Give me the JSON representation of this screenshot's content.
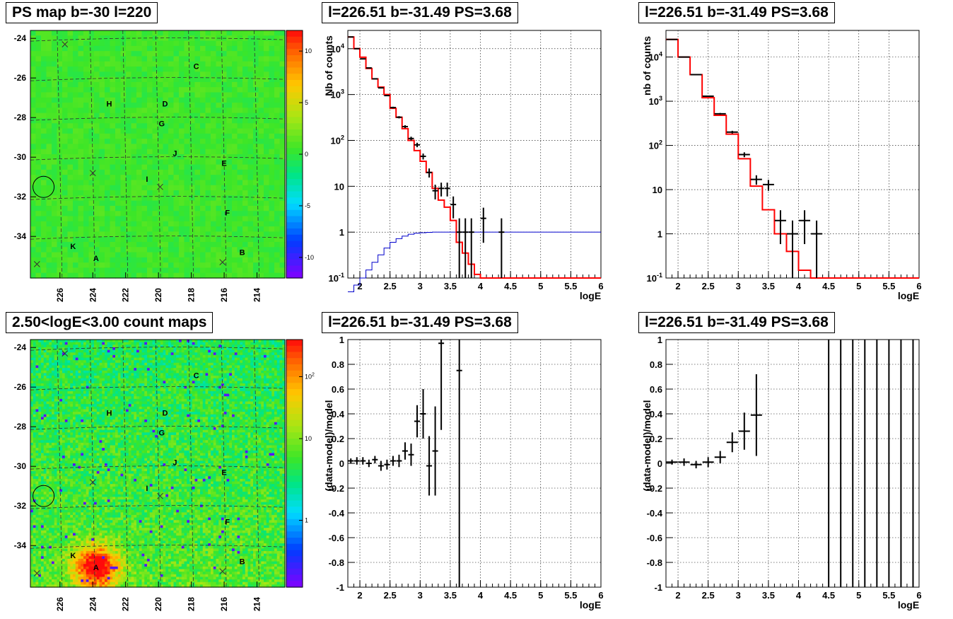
{
  "titles": {
    "map_top": "PS map b=-30 l=220",
    "spec_full": "l=226.51 b=-31.49 PS=3.68",
    "spec_reb": "l=226.51 b=-31.49 PS=3.68",
    "map_bottom": "2.50<logE<3.00 count maps",
    "res_full": "l=226.51 b=-31.49 PS=3.68",
    "res_reb": "l=226.51 b=-31.49 PS=3.68"
  },
  "chart_data": [
    {
      "id": "ps_map",
      "type": "heatmap",
      "title": "PS map b=-30 l=220",
      "x_ticks": [
        "226",
        "224",
        "222",
        "220",
        "218",
        "216",
        "214"
      ],
      "y_ticks": [
        "-24",
        "-26",
        "-28",
        "-30",
        "-32",
        "-34"
      ],
      "colorbar_ticks": [
        "10",
        "5",
        "0",
        "-5",
        "-10"
      ],
      "colorbar_range": [
        -12,
        12
      ],
      "sources": [
        {
          "label": "C",
          "l": 217.7,
          "b": -25.4
        },
        {
          "label": "H",
          "l": 223.0,
          "b": -27.3
        },
        {
          "label": "D",
          "l": 219.6,
          "b": -27.3
        },
        {
          "label": "G",
          "l": 219.8,
          "b": -28.3
        },
        {
          "label": "J",
          "l": 219.0,
          "b": -29.8
        },
        {
          "label": "E",
          "l": 216.0,
          "b": -30.3
        },
        {
          "label": "I",
          "l": 220.7,
          "b": -31.1
        },
        {
          "label": "F",
          "l": 215.8,
          "b": -32.8
        },
        {
          "label": "K",
          "l": 225.2,
          "b": -34.5
        },
        {
          "label": "A",
          "l": 223.8,
          "b": -35.1
        },
        {
          "label": "B",
          "l": 214.9,
          "b": -34.8
        }
      ],
      "crosses": [
        {
          "l": 225.7,
          "b": -24.3
        },
        {
          "l": 224.0,
          "b": -30.8
        },
        {
          "l": 219.9,
          "b": -31.5
        },
        {
          "l": 216.1,
          "b": -35.3
        },
        {
          "l": 227.4,
          "b": -35.4
        }
      ],
      "circle": {
        "l": 227.0,
        "b": -31.5
      }
    },
    {
      "id": "spectrum_full",
      "type": "line",
      "title": "l=226.51 b=-31.49 PS=3.68",
      "xlabel": "logE",
      "ylabel": "Nb of counts",
      "xlim": [
        1.8,
        6.0
      ],
      "ylim": [
        0.1,
        25000
      ],
      "yscale": "log",
      "grid": true,
      "x_ticks": [
        "2",
        "2.5",
        "3",
        "3.5",
        "4",
        "4.5",
        "5",
        "5.5",
        "6"
      ],
      "y_ticks": [
        "10^-1",
        "1",
        "10",
        "10^2",
        "10^3",
        "10^4"
      ],
      "model_edges": [
        1.8,
        1.9,
        2.0,
        2.1,
        2.2,
        2.3,
        2.4,
        2.5,
        2.6,
        2.7,
        2.8,
        2.9,
        3.0,
        3.1,
        3.2,
        3.3,
        3.4,
        3.5,
        3.6,
        3.7,
        3.8,
        3.9,
        4.0,
        6.0
      ],
      "model_values": [
        18000,
        10000,
        6500,
        3700,
        2200,
        1450,
        1000,
        500,
        320,
        180,
        100,
        60,
        35,
        20,
        9,
        5,
        3.5,
        1.8,
        0.6,
        0.35,
        0.2,
        0.12,
        0.1
      ],
      "data_points": [
        {
          "x": 1.85,
          "y": 18000
        },
        {
          "x": 1.95,
          "y": 10000
        },
        {
          "x": 2.05,
          "y": 6000
        },
        {
          "x": 2.15,
          "y": 3800
        },
        {
          "x": 2.25,
          "y": 2200
        },
        {
          "x": 2.35,
          "y": 1400
        },
        {
          "x": 2.45,
          "y": 950
        },
        {
          "x": 2.55,
          "y": 520
        },
        {
          "x": 2.65,
          "y": 320
        },
        {
          "x": 2.75,
          "y": 200
        },
        {
          "x": 2.85,
          "y": 110
        },
        {
          "x": 2.95,
          "y": 80
        },
        {
          "x": 3.05,
          "y": 45
        },
        {
          "x": 3.15,
          "y": 20
        },
        {
          "x": 3.25,
          "y": 8
        },
        {
          "x": 3.35,
          "y": 9
        },
        {
          "x": 3.45,
          "y": 9
        },
        {
          "x": 3.55,
          "y": 4
        },
        {
          "x": 3.65,
          "y": 1
        },
        {
          "x": 3.75,
          "y": 1
        },
        {
          "x": 3.85,
          "y": 1
        },
        {
          "x": 4.05,
          "y": 2
        },
        {
          "x": 4.35,
          "y": 1
        }
      ],
      "efficiency_curve": {
        "color": "#0000cc",
        "edges": [
          1.8,
          1.9,
          2.0,
          2.1,
          2.2,
          2.3,
          2.4,
          2.5,
          2.6,
          2.7,
          2.8,
          2.9,
          3.0,
          3.1,
          3.2,
          6.0
        ],
        "values": [
          0.05,
          0.07,
          0.1,
          0.15,
          0.22,
          0.32,
          0.45,
          0.6,
          0.72,
          0.82,
          0.9,
          0.95,
          0.97,
          0.99,
          1.0
        ]
      }
    },
    {
      "id": "spectrum_rebinned",
      "type": "line",
      "title": "l=226.51 b=-31.49 PS=3.68",
      "xlabel": "logE",
      "ylabel": "nb of counts",
      "xlim": [
        1.8,
        6.0
      ],
      "ylim": [
        0.1,
        40000
      ],
      "yscale": "log",
      "grid": true,
      "x_ticks": [
        "2",
        "2.5",
        "3",
        "3.5",
        "4",
        "4.5",
        "5",
        "5.5",
        "6"
      ],
      "y_ticks": [
        "10^-1",
        "1",
        "10",
        "10^2",
        "10^3",
        "10^4"
      ],
      "model_edges": [
        1.8,
        2.0,
        2.2,
        2.4,
        2.6,
        2.8,
        3.0,
        3.2,
        3.4,
        3.6,
        3.8,
        4.0,
        4.2,
        6.0
      ],
      "model_values": [
        25000,
        10000,
        4000,
        1200,
        480,
        180,
        50,
        12,
        3.5,
        1.0,
        0.4,
        0.15,
        0.1
      ],
      "data_points": [
        {
          "x": 1.9,
          "y": 25000
        },
        {
          "x": 2.1,
          "y": 10000
        },
        {
          "x": 2.3,
          "y": 4000
        },
        {
          "x": 2.5,
          "y": 1300
        },
        {
          "x": 2.7,
          "y": 520
        },
        {
          "x": 2.9,
          "y": 200
        },
        {
          "x": 3.1,
          "y": 62
        },
        {
          "x": 3.3,
          "y": 17
        },
        {
          "x": 3.5,
          "y": 13
        },
        {
          "x": 3.7,
          "y": 2
        },
        {
          "x": 3.9,
          "y": 1
        },
        {
          "x": 4.1,
          "y": 2
        },
        {
          "x": 4.3,
          "y": 1
        }
      ]
    },
    {
      "id": "count_map",
      "type": "heatmap",
      "title": "2.50<logE<3.00 count maps",
      "x_ticks": [
        "226",
        "224",
        "222",
        "220",
        "218",
        "216",
        "214"
      ],
      "y_ticks": [
        "-24",
        "-26",
        "-28",
        "-30",
        "-32",
        "-34"
      ],
      "colorbar_ticks": [
        "10^2",
        "10",
        "1"
      ],
      "colorbar_scale": "log",
      "hotspot": {
        "l": 223.8,
        "b": -35.1
      }
    },
    {
      "id": "residual_full",
      "type": "scatter",
      "title": "l=226.51 b=-31.49 PS=3.68",
      "xlabel": "logE",
      "ylabel": "(data-model)/model",
      "xlim": [
        1.8,
        6.0
      ],
      "ylim": [
        -1,
        1
      ],
      "grid": true,
      "x_ticks": [
        "2",
        "2.5",
        "3",
        "3.5",
        "4",
        "4.5",
        "5",
        "5.5",
        "6"
      ],
      "y_ticks": [
        "-1",
        "-0.8",
        "-0.6",
        "-0.4",
        "-0.2",
        "0",
        "0.2",
        "0.4",
        "0.6",
        "0.8",
        "1"
      ],
      "points": [
        {
          "x": 1.85,
          "y": 0.02,
          "err": 0.02
        },
        {
          "x": 1.95,
          "y": 0.02,
          "err": 0.03
        },
        {
          "x": 2.05,
          "y": 0.02,
          "err": 0.03
        },
        {
          "x": 2.15,
          "y": 0.0,
          "err": 0.03
        },
        {
          "x": 2.25,
          "y": 0.03,
          "err": 0.03
        },
        {
          "x": 2.35,
          "y": -0.02,
          "err": 0.04
        },
        {
          "x": 2.45,
          "y": -0.01,
          "err": 0.04
        },
        {
          "x": 2.55,
          "y": 0.02,
          "err": 0.04
        },
        {
          "x": 2.65,
          "y": 0.02,
          "err": 0.05
        },
        {
          "x": 2.75,
          "y": 0.1,
          "err": 0.07
        },
        {
          "x": 2.85,
          "y": 0.07,
          "err": 0.09
        },
        {
          "x": 2.95,
          "y": 0.34,
          "err": 0.13
        },
        {
          "x": 3.05,
          "y": 0.4,
          "err": 0.2
        },
        {
          "x": 3.15,
          "y": -0.02,
          "err": 0.24
        },
        {
          "x": 3.25,
          "y": 0.1,
          "err": 0.36
        },
        {
          "x": 3.35,
          "y": 0.97,
          "err": 0.7
        },
        {
          "x": 3.65,
          "y": 0.75,
          "err": 1.8
        }
      ]
    },
    {
      "id": "residual_rebinned",
      "type": "scatter",
      "title": "l=226.51 b=-31.49 PS=3.68",
      "xlabel": "logE",
      "ylabel": "(data-model)/model",
      "xlim": [
        1.8,
        6.0
      ],
      "ylim": [
        -1,
        1
      ],
      "grid": true,
      "x_ticks": [
        "2",
        "2.5",
        "3",
        "3.5",
        "4",
        "4.5",
        "5",
        "5.5",
        "6"
      ],
      "y_ticks": [
        "-1",
        "-0.8",
        "-0.6",
        "-0.4",
        "-0.2",
        "0",
        "0.2",
        "0.4",
        "0.6",
        "0.8",
        "1"
      ],
      "points": [
        {
          "x": 1.9,
          "y": 0.01,
          "err": 0.02
        },
        {
          "x": 2.1,
          "y": 0.01,
          "err": 0.03
        },
        {
          "x": 2.3,
          "y": -0.01,
          "err": 0.03
        },
        {
          "x": 2.5,
          "y": 0.01,
          "err": 0.04
        },
        {
          "x": 2.7,
          "y": 0.05,
          "err": 0.05
        },
        {
          "x": 2.9,
          "y": 0.17,
          "err": 0.08
        },
        {
          "x": 3.1,
          "y": 0.26,
          "err": 0.15
        },
        {
          "x": 3.3,
          "y": 0.39,
          "err": 0.33
        }
      ],
      "full_range_bars_x": [
        4.5,
        4.7,
        4.9,
        5.1,
        5.3,
        5.5,
        5.7,
        5.9
      ]
    }
  ]
}
